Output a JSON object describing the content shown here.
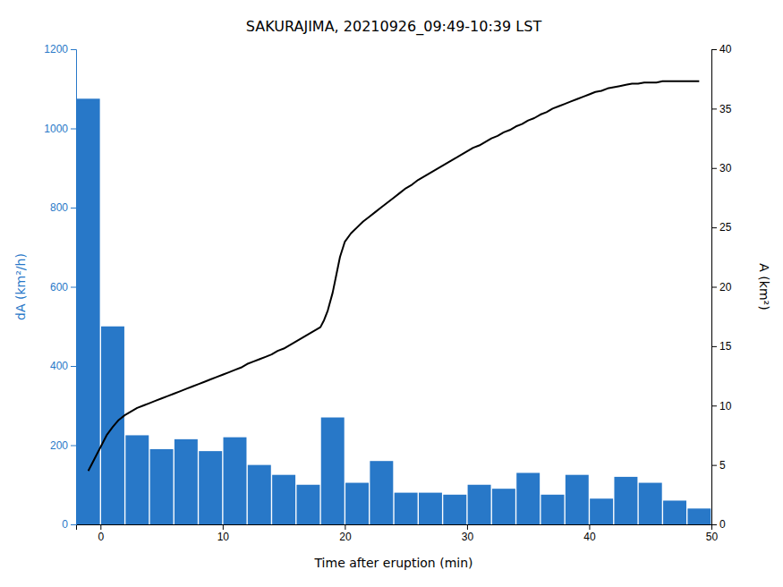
{
  "chart_data": {
    "type": "bar",
    "title": "SAKURAJIMA, 20210926_09:49-10:39 LST",
    "xlabel": "Time after eruption (min)",
    "ylabel": "dA (km²/h)",
    "y2label": "A (km²)",
    "xlim": [
      -2,
      50
    ],
    "xticks": [
      0,
      10,
      20,
      30,
      40,
      50
    ],
    "ylim": [
      0,
      1200
    ],
    "yticks": [
      0,
      200,
      400,
      600,
      800,
      1000,
      1200
    ],
    "y2lim": [
      0,
      40
    ],
    "y2ticks": [
      0,
      5,
      10,
      15,
      20,
      25,
      30,
      35,
      40
    ],
    "series": [
      {
        "type": "bar",
        "color": "#2878C8",
        "x": [
          -1,
          1,
          3,
          5,
          7,
          9,
          11,
          13,
          15,
          17,
          19,
          21,
          23,
          25,
          27,
          29,
          31,
          33,
          35,
          37,
          39,
          41,
          43,
          45,
          47,
          49
        ],
        "values": [
          1075,
          500,
          225,
          190,
          215,
          185,
          220,
          150,
          125,
          100,
          270,
          105,
          160,
          80,
          80,
          75,
          100,
          90,
          130,
          75,
          125,
          65,
          120,
          105,
          60,
          40
        ]
      },
      {
        "type": "line",
        "axis": "y2",
        "color": "#000000",
        "x": [
          -1.0,
          -0.5,
          0.0,
          0.5,
          1.0,
          1.5,
          2.0,
          2.5,
          3.0,
          3.5,
          4.0,
          4.5,
          5.0,
          5.5,
          6.0,
          6.5,
          7.0,
          7.5,
          8.0,
          8.5,
          9.0,
          9.5,
          10.0,
          10.5,
          11.0,
          11.5,
          12.0,
          12.5,
          13.0,
          13.5,
          14.0,
          14.5,
          15.0,
          15.5,
          16.0,
          16.5,
          17.0,
          17.5,
          18.0,
          18.3,
          18.6,
          19.0,
          19.3,
          19.6,
          20.0,
          20.5,
          21.0,
          21.5,
          22.0,
          22.5,
          23.0,
          23.5,
          24.0,
          24.5,
          25.0,
          25.5,
          26.0,
          26.5,
          27.0,
          27.5,
          28.0,
          28.5,
          29.0,
          29.5,
          30.0,
          30.5,
          31.0,
          31.5,
          32.0,
          32.5,
          33.0,
          33.5,
          34.0,
          34.5,
          35.0,
          35.5,
          36.0,
          36.5,
          37.0,
          37.5,
          38.0,
          38.5,
          39.0,
          39.5,
          40.0,
          40.5,
          41.0,
          41.5,
          42.0,
          42.5,
          43.0,
          43.5,
          44.0,
          44.5,
          45.0,
          45.5,
          46.0,
          46.5,
          47.0,
          47.5,
          48.0,
          48.5,
          49.0
        ],
        "values": [
          4.5,
          5.5,
          6.5,
          7.5,
          8.2,
          8.8,
          9.2,
          9.5,
          9.8,
          10.0,
          10.2,
          10.4,
          10.6,
          10.8,
          11.0,
          11.2,
          11.4,
          11.6,
          11.8,
          12.0,
          12.2,
          12.4,
          12.6,
          12.8,
          13.0,
          13.2,
          13.5,
          13.7,
          13.9,
          14.1,
          14.3,
          14.6,
          14.8,
          15.1,
          15.4,
          15.7,
          16.0,
          16.3,
          16.6,
          17.2,
          18.0,
          19.5,
          21.0,
          22.5,
          23.8,
          24.5,
          25.0,
          25.5,
          25.9,
          26.3,
          26.7,
          27.1,
          27.5,
          27.9,
          28.3,
          28.6,
          29.0,
          29.3,
          29.6,
          29.9,
          30.2,
          30.5,
          30.8,
          31.1,
          31.4,
          31.7,
          31.9,
          32.2,
          32.5,
          32.7,
          33.0,
          33.2,
          33.5,
          33.7,
          34.0,
          34.2,
          34.5,
          34.7,
          35.0,
          35.2,
          35.4,
          35.6,
          35.8,
          36.0,
          36.2,
          36.4,
          36.5,
          36.7,
          36.8,
          36.9,
          37.0,
          37.1,
          37.1,
          37.2,
          37.2,
          37.2,
          37.3,
          37.3,
          37.3,
          37.3,
          37.3,
          37.3,
          37.3
        ]
      }
    ]
  }
}
